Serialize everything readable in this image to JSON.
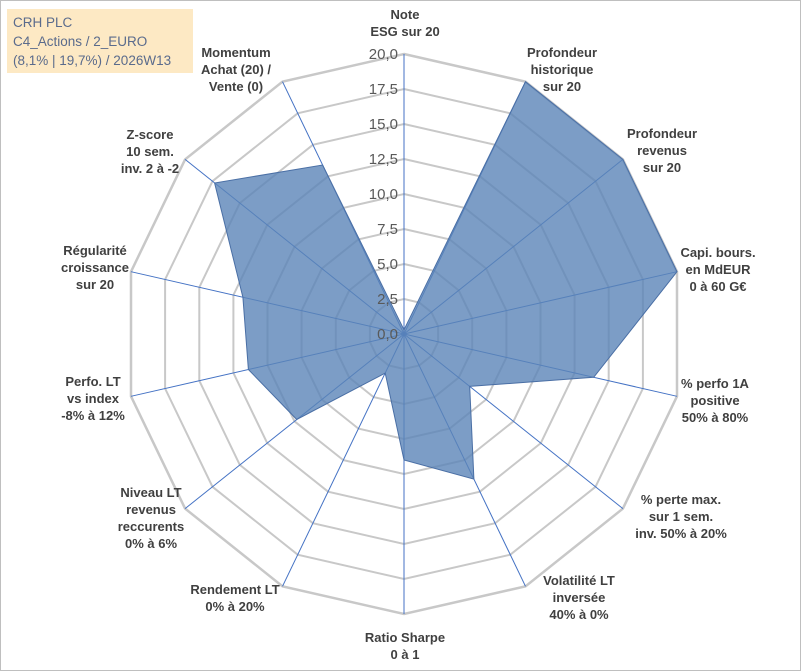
{
  "title": {
    "line1": "CRH PLC",
    "line2": "C4_Actions / 2_EURO",
    "line3": "(8,1% | 19,7%) / 2026W13"
  },
  "colors": {
    "grid": "#c8c8c8",
    "spoke": "#4472c4",
    "fill": "#5b84b8",
    "fill_opacity": 0.8,
    "stroke": "#4a6fa5",
    "title_bg": "#fde9c4",
    "title_text": "#5a6b8c"
  },
  "chart_data": {
    "type": "radar",
    "r_range": [
      0,
      20
    ],
    "r_step": 2.5,
    "tick_labels": [
      "0,0",
      "2,5",
      "5,0",
      "7,5",
      "10,0",
      "12,5",
      "15,0",
      "17,5",
      "20,0"
    ],
    "axes": [
      {
        "lines": [
          "Note",
          "ESG sur 20"
        ],
        "value": 0.3
      },
      {
        "lines": [
          "Profondeur",
          "historique",
          "sur 20"
        ],
        "value": 20.0
      },
      {
        "lines": [
          "Profondeur",
          "revenus",
          "sur 20"
        ],
        "value": 20.0
      },
      {
        "lines": [
          "Capi. bours.",
          "en MdEUR",
          "0 à 60 G€"
        ],
        "value": 20.0
      },
      {
        "lines": [
          "% perfo 1A",
          "positive",
          "50% à 80%"
        ],
        "value": 13.9
      },
      {
        "lines": [
          "% perte max.",
          "sur 1 sem.",
          "inv. 50% à 20%"
        ],
        "value": 6.0
      },
      {
        "lines": [
          "Volatilité LT",
          "inversée",
          "40% à 0%"
        ],
        "value": 11.5
      },
      {
        "lines": [
          "Ratio Sharpe",
          "0 à 1"
        ],
        "value": 9.0
      },
      {
        "lines": [
          "Rendement LT",
          "0% à 20%"
        ],
        "value": 3.1
      },
      {
        "lines": [
          "Niveau LT",
          "revenus",
          "reccurents",
          "0% à 6%"
        ],
        "value": 9.8
      },
      {
        "lines": [
          "Perfo. LT",
          "vs index",
          "-8% à 12%"
        ],
        "value": 11.4
      },
      {
        "lines": [
          "Régularité",
          "croissance",
          "sur 20"
        ],
        "value": 11.8
      },
      {
        "lines": [
          "Z-score",
          "10 sem.",
          "inv. 2 à -2"
        ],
        "value": 17.3
      },
      {
        "lines": [
          "Momentum",
          "Achat (20) /",
          "Vente (0)"
        ],
        "value": 13.4
      }
    ]
  }
}
